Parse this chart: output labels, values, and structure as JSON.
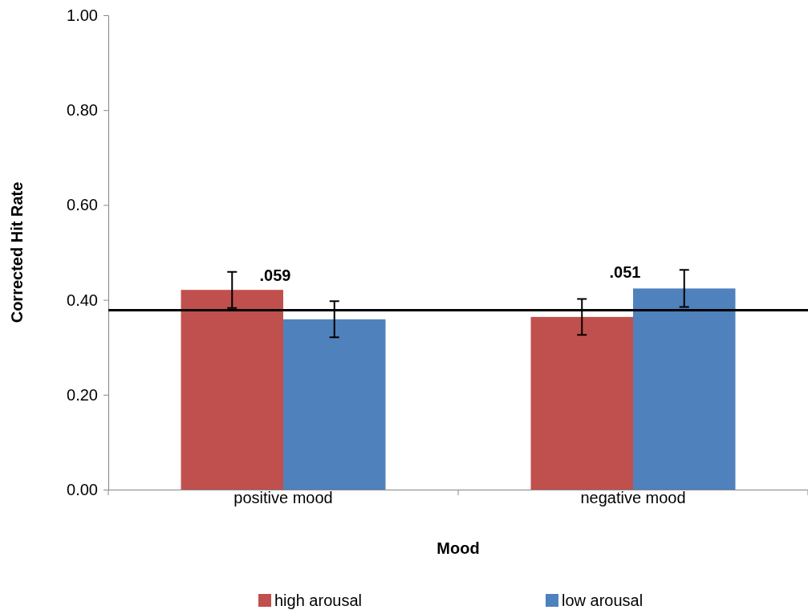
{
  "chart_data": {
    "type": "bar",
    "xlabel": "Mood",
    "ylabel": "Corrected Hit Rate",
    "categories": [
      "positive mood",
      "negative mood"
    ],
    "series": [
      {
        "name": "high arousal",
        "color": "#c0504d",
        "values": [
          0.421,
          0.364
        ],
        "errors": [
          0.038,
          0.038
        ]
      },
      {
        "name": "low arousal",
        "color": "#4f81bd",
        "values": [
          0.359,
          0.424
        ],
        "errors": [
          0.038,
          0.039
        ]
      }
    ],
    "ylim": [
      0,
      1
    ],
    "yticks": [
      {
        "value": 0,
        "label": "0.00"
      },
      {
        "value": 0.2,
        "label": "0.20"
      },
      {
        "value": 0.4,
        "label": "0.40"
      },
      {
        "value": 0.6,
        "label": "0.60"
      },
      {
        "value": 0.8,
        "label": "0.80"
      },
      {
        "value": 1,
        "label": "1.00"
      }
    ],
    "ref_lines": [
      {
        "axis": "y",
        "value": 0.378,
        "color": "#000000"
      }
    ],
    "annotations": [
      ".059",
      ".051"
    ],
    "grid": false,
    "legend": "bottom"
  }
}
